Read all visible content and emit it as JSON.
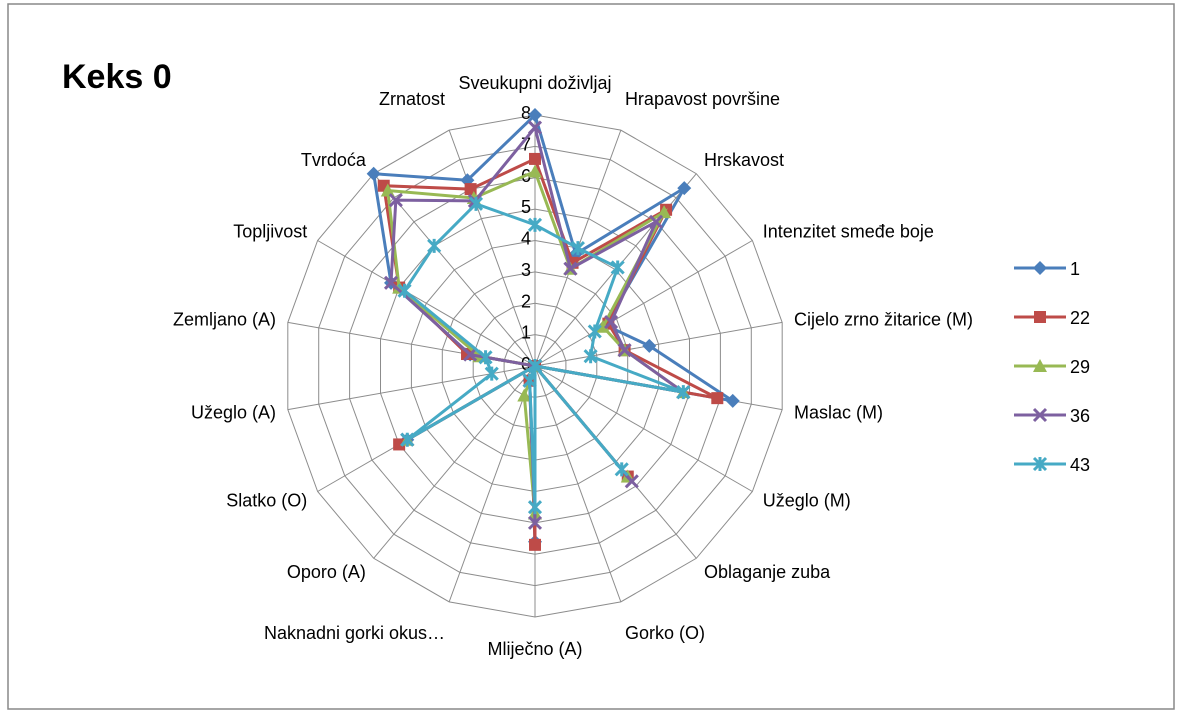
{
  "chart_data": {
    "type": "radar",
    "title": "Keks 0",
    "categories": [
      "Sveukupni doživljaj",
      "Hrapavost površine",
      "Hrskavost",
      "Intenzitet smeđe boje",
      "Cijelo zrno žitarice (M)",
      "Maslac (M)",
      "Užeglo (M)",
      "Oblaganje zuba",
      "Gorko (O)",
      "Mliječno (A)",
      "Naknadni gorki okus…",
      "Oporo (A)",
      "Slatko (O)",
      "Užeglo (A)",
      "Zemljano (A)",
      "Topljivost",
      "Tvrdoća",
      "Zrnatost"
    ],
    "series": [
      {
        "name": "1",
        "color": "#4a7ebb",
        "marker": "diamond",
        "values": [
          8,
          3.8,
          7.4,
          2.6,
          3.7,
          6.4,
          0,
          0,
          0,
          5.6,
          0.5,
          0,
          4.7,
          0,
          2.1,
          5.3,
          8,
          6.3
        ]
      },
      {
        "name": "22",
        "color": "#be4b48",
        "marker": "square",
        "values": [
          6.6,
          3.5,
          6.5,
          2.7,
          2.9,
          5.9,
          0,
          4.6,
          0,
          5.7,
          0.5,
          0,
          5.0,
          0,
          2.2,
          5.0,
          7.5,
          6.0
        ]
      },
      {
        "name": "29",
        "color": "#98b954",
        "marker": "triangle",
        "values": [
          6.2,
          3.3,
          6.4,
          2.5,
          2.9,
          4.8,
          0,
          4.6,
          0,
          4.7,
          1.0,
          0,
          4.7,
          0,
          1.8,
          5.0,
          7.3,
          5.7
        ]
      },
      {
        "name": "36",
        "color": "#7d60a0",
        "marker": "x",
        "values": [
          7.6,
          3.3,
          6.0,
          2.8,
          2.9,
          4.8,
          0,
          4.8,
          0,
          5.0,
          0.5,
          0,
          4.7,
          0,
          2.1,
          5.3,
          6.9,
          5.6
        ]
      },
      {
        "name": "43",
        "color": "#46aac5",
        "marker": "star",
        "values": [
          4.5,
          4.0,
          4.1,
          2.2,
          1.8,
          4.8,
          0,
          4.3,
          0,
          4.5,
          0.5,
          0,
          4.7,
          1.4,
          1.6,
          4.8,
          5.0,
          5.5
        ]
      }
    ],
    "ylim": [
      0,
      8
    ],
    "yticks": [
      0,
      1,
      2,
      3,
      4,
      5,
      6,
      7,
      8
    ],
    "grid": true,
    "legend": "right"
  }
}
